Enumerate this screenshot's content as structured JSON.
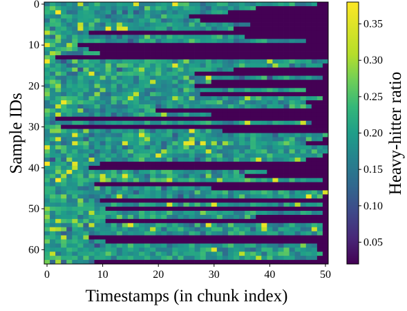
{
  "chart_data": {
    "type": "heatmap",
    "xlabel": "Timestamps (in chunk index)",
    "ylabel": "Sample IDs",
    "colorbar_label": "Heavy-hitter ratio",
    "x_ticks": [
      0,
      10,
      20,
      30,
      40,
      50
    ],
    "y_ticks": [
      0,
      10,
      20,
      30,
      40,
      50,
      60
    ],
    "colorbar_ticks": [
      0.05,
      0.1,
      0.15,
      0.2,
      0.25,
      0.3,
      0.35
    ],
    "colorbar_tick_labels": [
      "0.05",
      "0.10",
      "0.15",
      "0.20",
      "0.25",
      "0.30",
      "0.35"
    ],
    "n_timestamps": 51,
    "n_samples": 64,
    "value_range": [
      0.02,
      0.38
    ],
    "colormap": "viridis",
    "low_value": 0.02,
    "row_active_lengths": [
      49,
      38,
      33,
      26,
      28,
      37,
      34,
      8,
      36,
      47,
      6,
      8,
      10,
      2,
      51,
      50,
      34,
      27,
      50,
      30,
      27,
      47,
      28,
      50,
      47,
      48,
      20,
      30,
      2,
      48,
      3,
      32,
      51,
      50,
      47,
      51,
      51,
      50,
      47,
      10,
      8,
      40,
      36,
      50,
      9,
      30,
      51,
      50,
      10,
      50,
      11,
      50,
      38,
      11,
      50,
      50,
      50,
      8,
      11,
      49,
      49,
      50,
      49,
      9
    ]
  }
}
